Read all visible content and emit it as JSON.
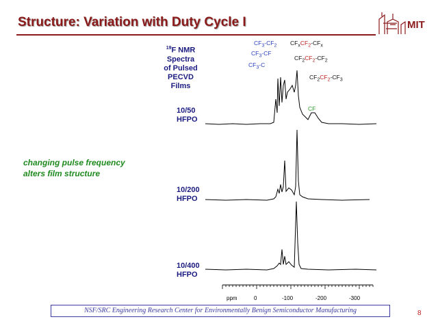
{
  "slide": {
    "title": "Structure: Variation with Duty Cycle I",
    "logo_text": "MIT",
    "page_number": "8",
    "footer": "NSF/SRC Engineering Research Center for Environmentally Benign Semiconductor Manufacturing"
  },
  "spectra_title": {
    "sup": "19",
    "line1": "F NMR Spectra",
    "line2": "of Pulsed PECVD",
    "line3": "Films"
  },
  "peaks": {
    "cf3cf2": {
      "a": "CF",
      "b": "3",
      "c": "-CF",
      "d": "2"
    },
    "cf3cf": {
      "a": "CF",
      "b": "3",
      "c": "-CF"
    },
    "cf3c": {
      "a": "CF",
      "b": "3",
      "c": "-C"
    },
    "cfx": {
      "a": "CF",
      "b": "x",
      "c": "CF",
      "d": "2",
      "e": "-CF",
      "f": "x"
    },
    "cf2cf2cf2": {
      "a": "CF",
      "b": "2",
      "c": "CF",
      "d": "2",
      "e": "-CF",
      "f": "2"
    },
    "cf2cf2cf3": {
      "a": "CF",
      "b": "2",
      "c": "CF",
      "d": "2",
      "e": "-CF",
      "f": "3"
    },
    "cf": {
      "a": "CF",
      "b": ""
    }
  },
  "samples": [
    {
      "line1": "10/50",
      "line2": "HFPO"
    },
    {
      "line1": "10/200",
      "line2": "HFPO"
    },
    {
      "line1": "10/400",
      "line2": "HFPO"
    }
  ],
  "note": {
    "line1": "changing pulse frequency",
    "line2": "alters film structure"
  },
  "axis": {
    "unit": "ppm",
    "ticks": [
      "0",
      "-100",
      "-200",
      "-300"
    ]
  }
}
